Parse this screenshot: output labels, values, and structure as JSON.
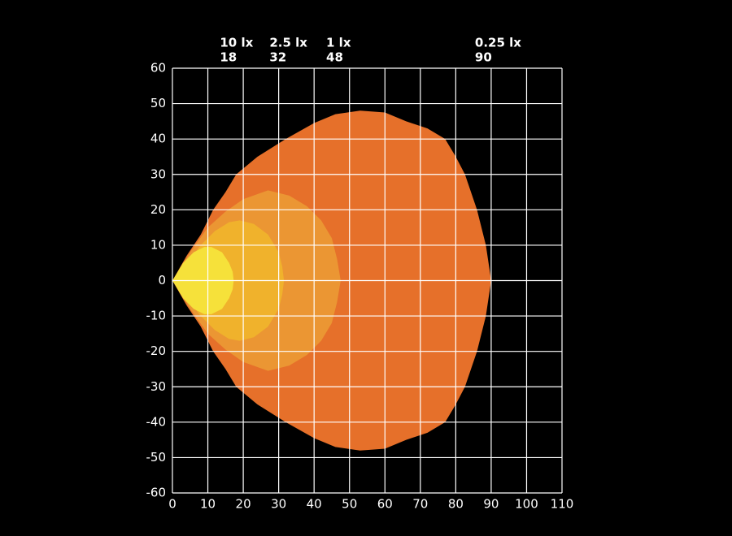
{
  "chart_data": {
    "type": "isolux",
    "series": [
      {
        "name": "10 lx",
        "distance": 18,
        "color": "#f6e13a",
        "x": [
          0,
          3,
          6,
          9,
          11,
          14,
          16,
          17,
          17.3,
          17,
          16,
          14,
          11,
          9,
          6,
          3
        ],
        "y": [
          0,
          5,
          8,
          9.5,
          9.5,
          8,
          5,
          2.5,
          0,
          -2.5,
          -5,
          -8,
          -9.5,
          -9.5,
          -8,
          -5
        ]
      },
      {
        "name": "2.5 lx",
        "distance": 32,
        "color": "#f0b22c",
        "x": [
          0,
          4,
          8,
          12,
          16,
          19,
          23,
          27,
          30,
          31,
          31.5,
          31,
          30,
          27,
          23,
          19,
          16,
          12,
          8,
          4
        ],
        "y": [
          0,
          5,
          10,
          14,
          16.5,
          17,
          16,
          13,
          8,
          4,
          0,
          -4,
          -8,
          -13,
          -16,
          -17,
          -16.5,
          -14,
          -10,
          -5
        ]
      },
      {
        "name": "1 lx",
        "distance": 48,
        "color": "#eb9633",
        "x": [
          0,
          5,
          10,
          15,
          20,
          27,
          33,
          38,
          42,
          45,
          46.5,
          47.5,
          46.5,
          45,
          42,
          38,
          33,
          27,
          20,
          15,
          10,
          5
        ],
        "y": [
          0,
          8,
          15,
          19.5,
          23,
          25.5,
          24,
          21,
          17,
          12,
          6,
          0,
          -6,
          -12,
          -17,
          -21,
          -24,
          -25.5,
          -23,
          -19.5,
          -15,
          -8
        ]
      },
      {
        "name": "0.25 lx",
        "distance": 90,
        "color": "#e6702a",
        "x": [
          0,
          4,
          8,
          11.5,
          15,
          18,
          24,
          32,
          40,
          46,
          53,
          60,
          66,
          72,
          77,
          80,
          82.6,
          86,
          88.5,
          90,
          88.5,
          86,
          82.6,
          80,
          77,
          72,
          66,
          60,
          53,
          46,
          40,
          32,
          24,
          18,
          15,
          11.5,
          8,
          4
        ],
        "y": [
          0,
          7,
          13,
          20,
          25,
          30,
          35,
          40,
          44.5,
          47,
          48,
          47.5,
          45,
          43,
          40,
          35,
          30,
          20,
          10,
          0,
          -10,
          -20,
          -30,
          -35,
          -40,
          -43,
          -45,
          -47.5,
          -48,
          -47,
          -44.5,
          -40,
          -35,
          -30,
          -25,
          -20,
          -13,
          -7
        ]
      }
    ],
    "xlim": [
      0,
      110
    ],
    "xticks": [
      0,
      10,
      20,
      30,
      40,
      50,
      60,
      70,
      80,
      90,
      100,
      110
    ],
    "ylim": [
      -60,
      60
    ],
    "yticks": [
      60,
      50,
      40,
      30,
      20,
      10,
      0,
      -10,
      -20,
      -30,
      -40,
      -50,
      -60
    ],
    "grid": true
  }
}
